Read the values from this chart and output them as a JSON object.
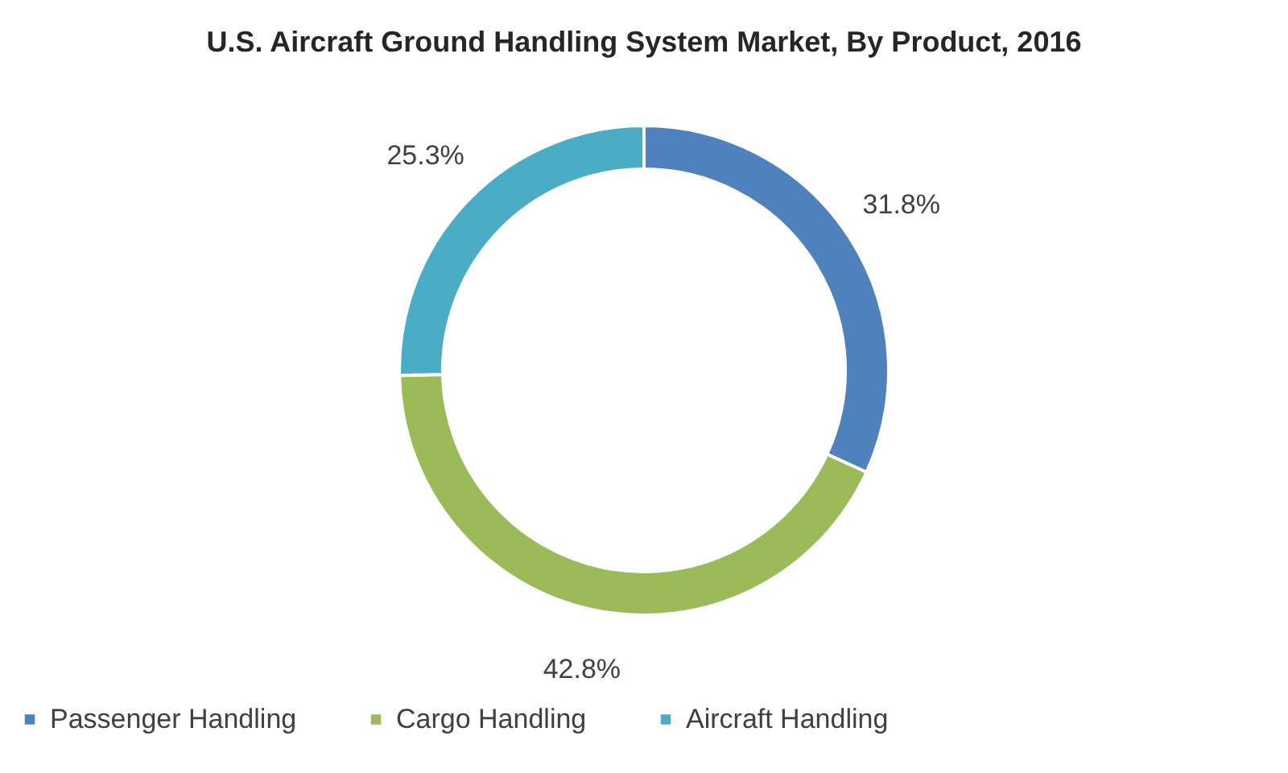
{
  "chart_data": {
    "type": "donut",
    "title": "U.S. Aircraft Ground Handling System Market, By Product, 2016",
    "categories": [
      "Passenger Handling",
      "Cargo Handling",
      "Aircraft Handling"
    ],
    "values": [
      31.8,
      42.8,
      25.3
    ],
    "colors": [
      "#4f81bd",
      "#9bbb59",
      "#4bacc6"
    ],
    "value_labels": [
      "31.8%",
      "42.8%",
      "25.3%"
    ],
    "legend": "bottom"
  }
}
